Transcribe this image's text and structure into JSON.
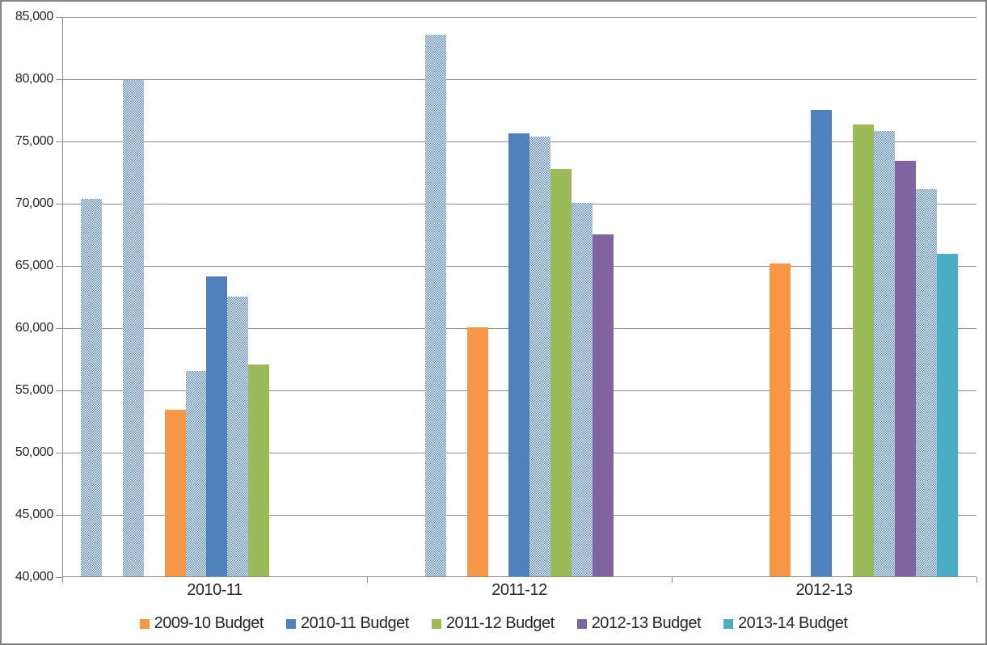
{
  "chart_data": {
    "type": "bar",
    "title": "",
    "xlabel": "",
    "ylabel": "",
    "grid": true,
    "legend_position": "bottom",
    "categories": [
      "2010-11",
      "2011-12",
      "2012-13"
    ],
    "y_axis": {
      "min": 40000,
      "max": 85000,
      "step": 5000
    },
    "y_tick_labels": [
      "85,000",
      "80,000",
      "75,000",
      "70,000",
      "65,000",
      "60,000",
      "55,000",
      "50,000",
      "45,000",
      "40,000"
    ],
    "legend": [
      {
        "label": "2009-10 Budget",
        "color": "#F79646"
      },
      {
        "label": "2010-11 Budget",
        "color": "#4F81BD"
      },
      {
        "label": "2011-12 Budget",
        "color": "#9BBB59"
      },
      {
        "label": "2012-13 Budget",
        "color": "#8064A2"
      },
      {
        "label": "2013-14 Budget",
        "color": "#4BACC6"
      }
    ],
    "pattern_bar": {
      "note": "unlabeled checker-pattern bars",
      "fg": "#4F81BD",
      "bg": "#FFFFFF"
    },
    "slots_per_group": 13,
    "groups": [
      {
        "category": "2010-11",
        "bars": [
          {
            "slot": 1,
            "value": 70300,
            "style": "pattern"
          },
          {
            "slot": 3,
            "value": 79900,
            "style": "pattern"
          },
          {
            "slot": 5,
            "value": 53400,
            "style": "solid",
            "series": "2009-10 Budget"
          },
          {
            "slot": 6,
            "value": 56500,
            "style": "pattern"
          },
          {
            "slot": 7,
            "value": 64100,
            "style": "solid",
            "series": "2010-11 Budget"
          },
          {
            "slot": 8,
            "value": 62500,
            "style": "pattern"
          },
          {
            "slot": 9,
            "value": 57000,
            "style": "solid",
            "series": "2011-12 Budget"
          }
        ]
      },
      {
        "category": "2011-12",
        "bars": [
          {
            "slot": 3,
            "value": 83500,
            "style": "pattern"
          },
          {
            "slot": 5,
            "value": 60000,
            "style": "solid",
            "series": "2009-10 Budget"
          },
          {
            "slot": 7,
            "value": 75600,
            "style": "solid",
            "series": "2010-11 Budget"
          },
          {
            "slot": 8,
            "value": 75300,
            "style": "pattern"
          },
          {
            "slot": 9,
            "value": 72700,
            "style": "solid",
            "series": "2011-12 Budget"
          },
          {
            "slot": 10,
            "value": 70000,
            "style": "pattern"
          },
          {
            "slot": 11,
            "value": 67500,
            "style": "solid",
            "series": "2012-13 Budget"
          }
        ]
      },
      {
        "category": "2012-13",
        "bars": [
          {
            "slot": 5,
            "value": 65100,
            "style": "solid",
            "series": "2009-10 Budget"
          },
          {
            "slot": 7,
            "value": 77500,
            "style": "solid",
            "series": "2010-11 Budget"
          },
          {
            "slot": 9,
            "value": 76300,
            "style": "solid",
            "series": "2011-12 Budget"
          },
          {
            "slot": 10,
            "value": 75800,
            "style": "pattern"
          },
          {
            "slot": 11,
            "value": 73400,
            "style": "solid",
            "series": "2012-13 Budget"
          },
          {
            "slot": 12,
            "value": 71100,
            "style": "pattern"
          },
          {
            "slot": 13,
            "value": 65900,
            "style": "solid",
            "series": "2013-14 Budget"
          }
        ]
      }
    ],
    "colors": {
      "gridline": "#8C8C8C",
      "axis": "#8C8C8C",
      "text": "#262626",
      "background": "#FFFFFF",
      "frame_border": "#848484"
    }
  }
}
